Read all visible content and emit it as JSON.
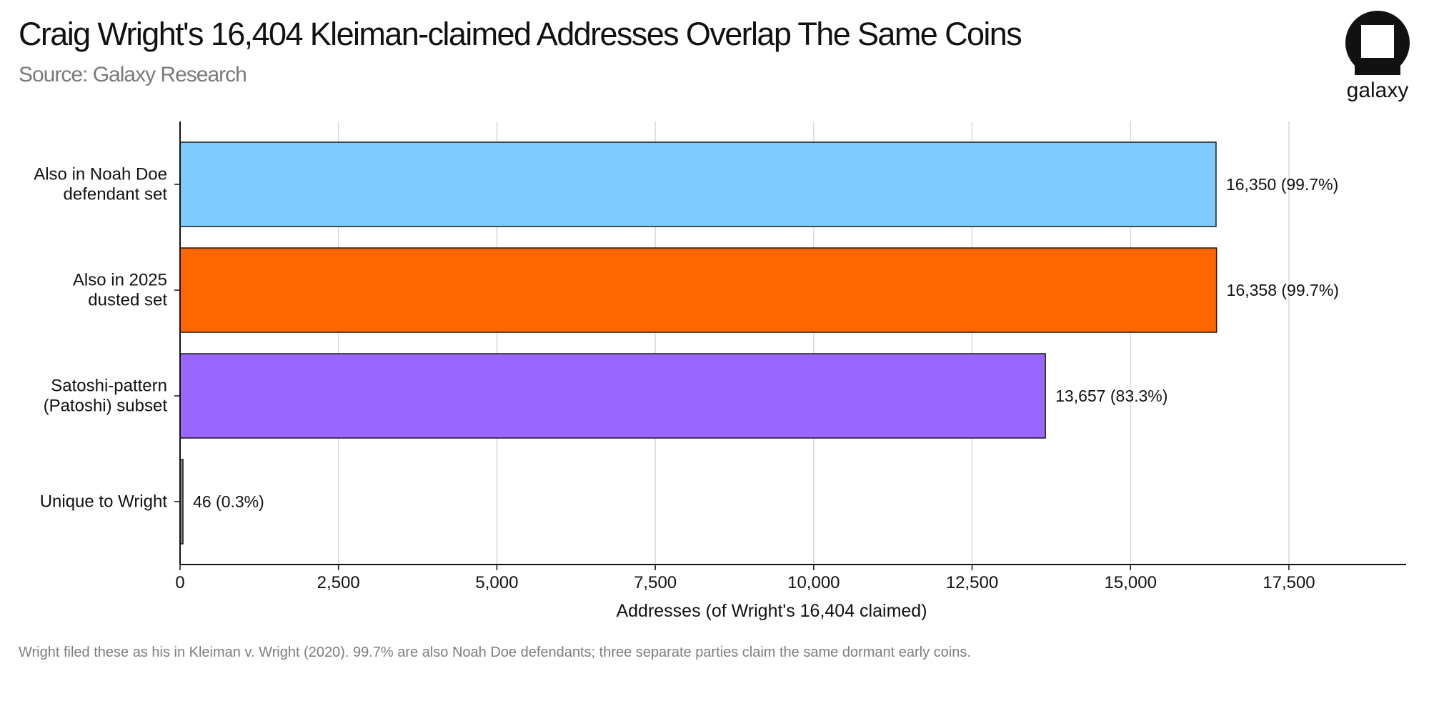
{
  "header": {
    "title": "Craig Wright's 16,404 Kleiman-claimed Addresses Overlap The Same Coins",
    "subtitle": "Source: Galaxy Research"
  },
  "brand": {
    "logo_icon": "galaxy-logo-icon",
    "name": "galaxy"
  },
  "footnote": "Wright filed these as his in Kleiman v. Wright (2020). 99.7% are also Noah Doe defendants; three separate parties claim the same dormant early coins.",
  "colors": {
    "grid": "#d9d9d9",
    "axis": "#111111",
    "bar_outline": "#1a1a1a"
  },
  "chart_data": {
    "type": "bar",
    "orientation": "horizontal",
    "title": "",
    "xlabel": "Addresses (of Wright's 16,404 claimed)",
    "ylabel": "",
    "xlim": [
      0,
      19350
    ],
    "xticks": [
      0,
      2500,
      5000,
      7500,
      10000,
      12500,
      15000,
      17500
    ],
    "xtick_labels": [
      "0",
      "2,500",
      "5,000",
      "7,500",
      "10,000",
      "12,500",
      "15,000",
      "17,500"
    ],
    "grid": "vertical",
    "categories": [
      [
        "Also in Noah Doe",
        "defendant set"
      ],
      [
        "Also in 2025",
        "dusted set"
      ],
      [
        "Satoshi-pattern",
        "(Patoshi) subset"
      ],
      [
        "Unique to Wright"
      ]
    ],
    "values": [
      16350,
      16358,
      13657,
      46
    ],
    "data_labels": [
      "16,350  (99.7%)",
      "16,358  (99.7%)",
      "13,657  (83.3%)",
      "46  (0.3%)"
    ],
    "bar_colors": [
      "#7ecbff",
      "#ff6600",
      "#9966ff",
      "#888888"
    ]
  }
}
